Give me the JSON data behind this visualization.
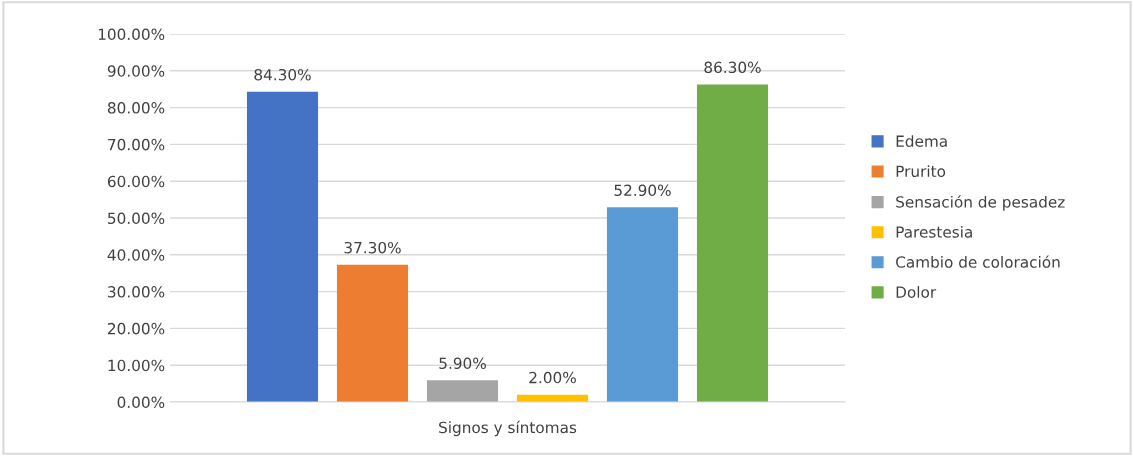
{
  "chart_data": {
    "type": "bar",
    "xlabel": "Signos y síntomas",
    "categories": [
      null
    ],
    "series": [
      {
        "name": "Edema",
        "color": "#4472c4",
        "values": [
          84.3
        ],
        "value_labels": [
          "84.30%"
        ]
      },
      {
        "name": "Prurito",
        "color": "#ed7d31",
        "values": [
          37.3
        ],
        "value_labels": [
          "37.30%"
        ]
      },
      {
        "name": "Sensación de pesadez",
        "color": "#a5a5a5",
        "values": [
          5.9
        ],
        "value_labels": [
          "5.90%"
        ]
      },
      {
        "name": "Parestesia",
        "color": "#ffc000",
        "values": [
          2.0
        ],
        "value_labels": [
          "2.00%"
        ]
      },
      {
        "name": "Cambio de coloración",
        "color": "#5b9bd5",
        "values": [
          52.9
        ],
        "value_labels": [
          "52.90%"
        ]
      },
      {
        "name": "Dolor",
        "color": "#70ad47",
        "values": [
          86.3
        ],
        "value_labels": [
          "86.30%"
        ]
      }
    ],
    "ylim": [
      0,
      100
    ],
    "yticks": [
      {
        "value": 0,
        "label": "0.00%"
      },
      {
        "value": 10,
        "label": "10.00%"
      },
      {
        "value": 20,
        "label": "20.00%"
      },
      {
        "value": 30,
        "label": "30.00%"
      },
      {
        "value": 40,
        "label": "40.00%"
      },
      {
        "value": 50,
        "label": "50.00%"
      },
      {
        "value": 60,
        "label": "60.00%"
      },
      {
        "value": 70,
        "label": "70.00%"
      },
      {
        "value": 80,
        "label": "80.00%"
      },
      {
        "value": 90,
        "label": "90.00%"
      },
      {
        "value": 100,
        "label": "100.00%"
      }
    ],
    "grid": "y",
    "legend": "right"
  }
}
